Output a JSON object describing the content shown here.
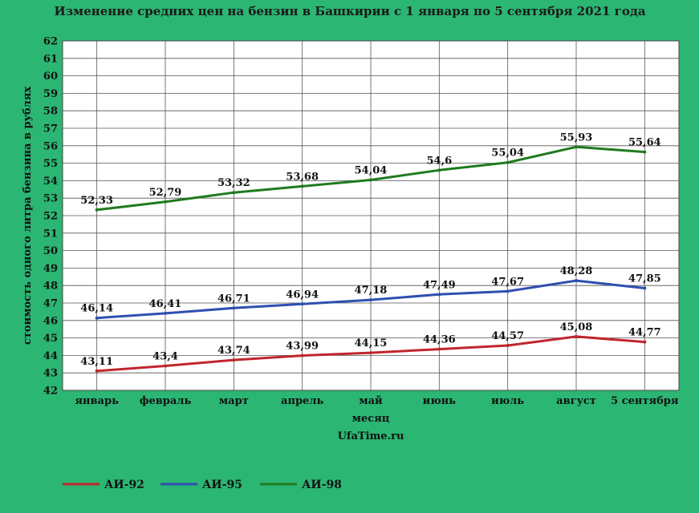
{
  "chart_data": {
    "type": "line",
    "title": "Изменение средних цен на бензин в Башкирии с 1 января по 5 сентября 2021 года",
    "xlabel": "месяц",
    "ylabel": "стоимость одного литра бензина в рублях",
    "source": "UfaTime.ru",
    "categories": [
      "январь",
      "февраль",
      "март",
      "апрель",
      "май",
      "июнь",
      "июль",
      "август",
      "5 сентября"
    ],
    "ylim": [
      42,
      62
    ],
    "yticks": [
      "42",
      "43",
      "44",
      "45",
      "46",
      "47",
      "48",
      "49",
      "50",
      "51",
      "52",
      "53",
      "54",
      "55",
      "56",
      "57",
      "58",
      "59",
      "60",
      "61",
      "62"
    ],
    "grid": true,
    "legend_position": "bottom-left",
    "series": [
      {
        "name": "АИ-92",
        "color": "#c0262d",
        "values": [
          43.11,
          43.4,
          43.74,
          43.99,
          44.15,
          44.36,
          44.57,
          45.08,
          44.77
        ],
        "labels": [
          "43,11",
          "43,4",
          "43,74",
          "43,99",
          "44,15",
          "44,36",
          "44,57",
          "45,08",
          "44,77"
        ]
      },
      {
        "name": "АИ-95",
        "color": "#2f4fb0",
        "values": [
          46.14,
          46.41,
          46.71,
          46.94,
          47.18,
          47.49,
          47.67,
          48.28,
          47.85
        ],
        "labels": [
          "46,14",
          "46,41",
          "46,71",
          "46,94",
          "47,18",
          "47,49",
          "47,67",
          "48,28",
          "47,85"
        ]
      },
      {
        "name": "АИ-98",
        "color": "#1f7a1f",
        "values": [
          52.33,
          52.79,
          53.32,
          53.68,
          54.04,
          54.6,
          55.04,
          55.93,
          55.64
        ],
        "labels": [
          "52,33",
          "52,79",
          "53,32",
          "53,68",
          "54,04",
          "54,6",
          "55,04",
          "55,93",
          "55,64"
        ]
      }
    ]
  }
}
